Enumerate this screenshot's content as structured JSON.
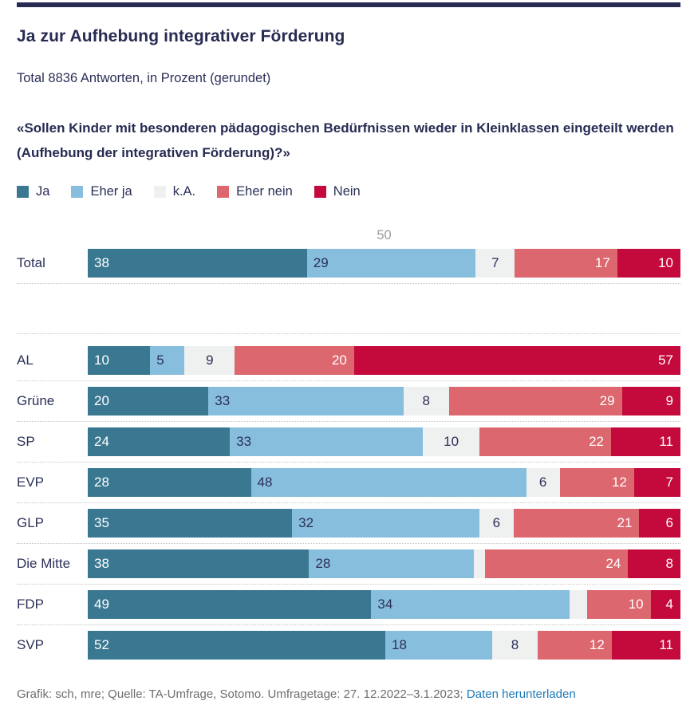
{
  "header": {
    "title": "Ja zur Aufhebung integrativer Förderung",
    "subtitle": "Total 8836 Antworten, in Prozent (gerundet)",
    "question": "«Sollen Kinder mit besonderen pädagogischen Bedürfnissen wieder in Kleinklassen eingeteilt werden (Aufhebung der integrativen Förderung)?»"
  },
  "legend": [
    {
      "label": "Ja",
      "color": "#3a7891"
    },
    {
      "label": "Eher ja",
      "color": "#87bedd"
    },
    {
      "label": "k.A.",
      "color": "#eff0f0"
    },
    {
      "label": "Eher nein",
      "color": "#dc676e"
    },
    {
      "label": "Nein",
      "color": "#c40a3c"
    }
  ],
  "chart_data": {
    "type": "bar",
    "variant": "stacked-horizontal",
    "unit": "percent, rounded",
    "xlim": [
      0,
      100
    ],
    "gridline": {
      "value": 50,
      "label": "50",
      "label_color": "#9b9fa4"
    },
    "series": [
      {
        "name": "Ja",
        "color": "#3a7891",
        "text_color": "#ffffff",
        "label_align": "left"
      },
      {
        "name": "Eher ja",
        "color": "#87bedd",
        "text_color": "#2b3057",
        "label_align": "left"
      },
      {
        "name": "k.A.",
        "color": "#eff0f0",
        "text_color": "#2b3057",
        "label_align": "center"
      },
      {
        "name": "Eher nein",
        "color": "#dc676e",
        "text_color": "#ffffff",
        "label_align": "right"
      },
      {
        "name": "Nein",
        "color": "#c40a3c",
        "text_color": "#ffffff",
        "label_align": "right"
      }
    ],
    "categories": [
      "Total",
      "AL",
      "Grüne",
      "SP",
      "EVP",
      "GLP",
      "Die Mitte",
      "FDP",
      "SVP"
    ],
    "rows": [
      {
        "category": "Total",
        "values": [
          38,
          29,
          7,
          17,
          10
        ],
        "value_labels": [
          "38",
          "29",
          "7",
          "17",
          "10"
        ]
      },
      {
        "category": "AL",
        "values": [
          10,
          5,
          9,
          20,
          57
        ],
        "value_labels": [
          "10",
          "5",
          "9",
          "20",
          "57"
        ]
      },
      {
        "category": "Grüne",
        "values": [
          20,
          33,
          8,
          29,
          9
        ],
        "value_labels": [
          "20",
          "33",
          "8",
          "29",
          "9"
        ]
      },
      {
        "category": "SP",
        "values": [
          24,
          33,
          10,
          22,
          11
        ],
        "value_labels": [
          "24",
          "33",
          "10",
          "22",
          "11"
        ]
      },
      {
        "category": "EVP",
        "values": [
          28,
          48,
          6,
          12,
          7
        ],
        "value_labels": [
          "28",
          "48",
          "6",
          "12",
          "7"
        ]
      },
      {
        "category": "GLP",
        "values": [
          35,
          32,
          6,
          21,
          6
        ],
        "value_labels": [
          "35",
          "32",
          "6",
          "21",
          "6"
        ]
      },
      {
        "category": "Die Mitte",
        "values": [
          38,
          28,
          2,
          24,
          8
        ],
        "value_labels": [
          "38",
          "28",
          "",
          "24",
          "8"
        ]
      },
      {
        "category": "FDP",
        "values": [
          49,
          34,
          3,
          10,
          4
        ],
        "value_labels": [
          "49",
          "34",
          "",
          "10",
          "4"
        ]
      },
      {
        "category": "SVP",
        "values": [
          52,
          18,
          8,
          12,
          11
        ],
        "value_labels": [
          "52",
          "18",
          "8",
          "12",
          "11"
        ]
      }
    ]
  },
  "footer": {
    "credit": "Grafik: sch, mre; Quelle: TA-Umfrage, Sotomo. Umfragetage: 27. 12.2022–3.1.2023; ",
    "link_label": "Daten herunterladen"
  }
}
